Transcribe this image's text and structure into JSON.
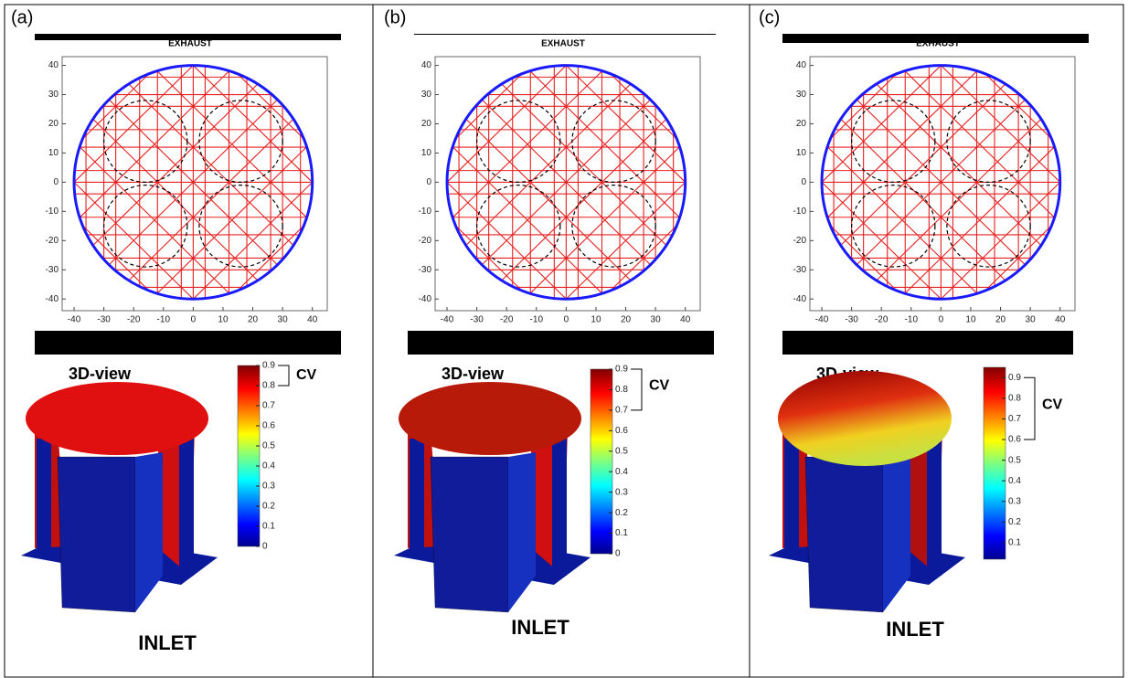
{
  "panels": [
    {
      "label": "(a)",
      "exhaust": "EXHAUST",
      "xticks": [
        -40,
        -30,
        -20,
        -10,
        0,
        10,
        20,
        30,
        40
      ],
      "xlim": [
        -44,
        45
      ],
      "yticks": [
        -40,
        -30,
        -20,
        -10,
        0,
        10,
        20,
        30,
        40
      ],
      "ylim": [
        -44,
        43
      ],
      "view_label": "3D-view",
      "colorbar_ticks": [
        0,
        0.1,
        0.2,
        0.3,
        0.4,
        0.5,
        0.6,
        0.7,
        0.8,
        0.9
      ],
      "colorbar_lim": [
        0,
        0.9
      ],
      "cv_label": "CV",
      "cv_range": [
        0.8,
        0.9
      ],
      "inlet": "INLET"
    },
    {
      "label": "(b)",
      "exhaust": "EXHAUST",
      "xticks": [
        -40,
        -30,
        -20,
        -10,
        0,
        10,
        20,
        30,
        40
      ],
      "xlim": [
        -44,
        45
      ],
      "yticks": [
        -40,
        -30,
        -20,
        -10,
        0,
        10,
        20,
        30,
        40
      ],
      "ylim": [
        -44,
        43
      ],
      "view_label": "3D-view",
      "colorbar_ticks": [
        0,
        0.1,
        0.2,
        0.3,
        0.4,
        0.5,
        0.6,
        0.7,
        0.8,
        0.9
      ],
      "colorbar_lim": [
        0,
        0.9
      ],
      "cv_label": "CV",
      "cv_range": [
        0.7,
        0.9
      ],
      "inlet": "INLET"
    },
    {
      "label": "(c)",
      "exhaust": "EXHAUST",
      "xticks": [
        -40,
        -30,
        -20,
        -10,
        0,
        10,
        20,
        30,
        40
      ],
      "xlim": [
        -44,
        45
      ],
      "yticks": [
        -40,
        -30,
        -20,
        -10,
        0,
        10,
        20,
        30,
        40
      ],
      "ylim": [
        -44,
        43
      ],
      "view_label": "3D-view",
      "colorbar_ticks": [
        0.1,
        0.2,
        0.3,
        0.4,
        0.5,
        0.6,
        0.7,
        0.8,
        0.9
      ],
      "colorbar_lim": [
        0.02,
        0.95
      ],
      "cv_label": "CV",
      "cv_range": [
        0.6,
        0.9
      ],
      "inlet": "INLET"
    }
  ]
}
